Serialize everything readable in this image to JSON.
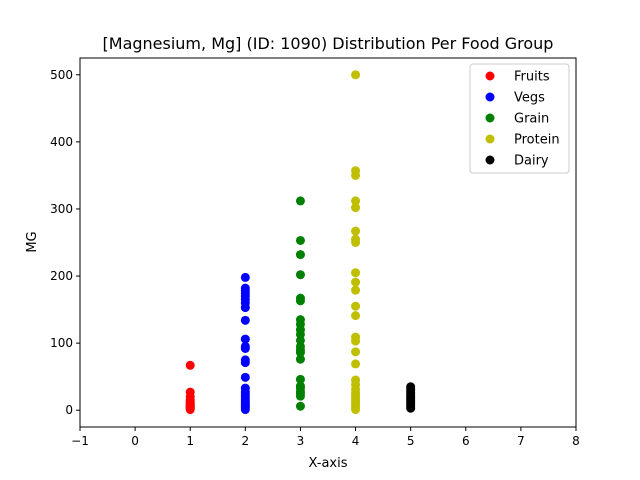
{
  "chart_data": {
    "type": "scatter",
    "title": "[Magnesium, Mg] (ID: 1090) Distribution Per Food Group",
    "xlabel": "X-axis",
    "ylabel": "MG",
    "xlim": [
      -1,
      8
    ],
    "ylim": [
      -25,
      525
    ],
    "xticks": [
      -1,
      0,
      1,
      2,
      3,
      4,
      5,
      6,
      7,
      8
    ],
    "yticks": [
      0,
      100,
      200,
      300,
      400,
      500
    ],
    "grid": false,
    "legend_position": "top-right",
    "series": [
      {
        "name": "Fruits",
        "color": "#ff0000",
        "x": 1,
        "values": [
          67,
          27,
          20,
          16,
          14,
          12,
          10,
          9,
          8,
          7,
          6,
          5,
          4,
          3,
          2,
          1
        ]
      },
      {
        "name": "Vegs",
        "color": "#0000ff",
        "x": 2,
        "values": [
          198,
          182,
          178,
          174,
          170,
          165,
          160,
          153,
          134,
          106,
          95,
          92,
          75,
          71,
          49,
          33,
          27,
          23,
          20,
          17,
          14,
          11,
          9,
          6,
          4,
          1
        ]
      },
      {
        "name": "Grain",
        "color": "#008000",
        "x": 3,
        "values": [
          312,
          253,
          232,
          202,
          167,
          163,
          135,
          128,
          120,
          113,
          104,
          95,
          90,
          86,
          76,
          46,
          36,
          33,
          28,
          25,
          21,
          6
        ]
      },
      {
        "name": "Protein",
        "color": "#bfbf00",
        "x": 4,
        "values": [
          500,
          357,
          350,
          312,
          302,
          267,
          255,
          250,
          205,
          191,
          179,
          155,
          141,
          109,
          103,
          87,
          69,
          45,
          38,
          31,
          26,
          22,
          18,
          14,
          10,
          6,
          1
        ]
      },
      {
        "name": "Dairy",
        "color": "#000000",
        "x": 5,
        "values": [
          35,
          32,
          29,
          26,
          23,
          20,
          18,
          15,
          12,
          9,
          6,
          3
        ]
      }
    ]
  }
}
